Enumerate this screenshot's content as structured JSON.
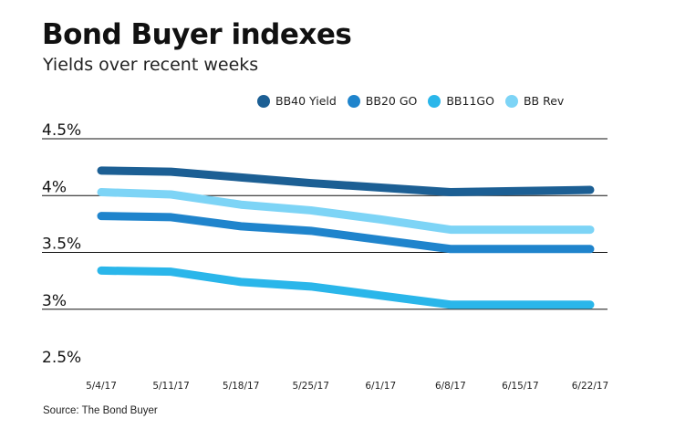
{
  "header": {
    "title": "Bond Buyer indexes",
    "subtitle": "Yields over recent weeks"
  },
  "footer": {
    "source": "Source: The Bond Buyer"
  },
  "chart_data": {
    "type": "line",
    "title": "Bond Buyer indexes",
    "subtitle": "Yields over recent weeks",
    "xlabel": "",
    "ylabel": "",
    "x": [
      "5/4/17",
      "5/11/17",
      "5/18/17",
      "5/25/17",
      "6/1/17",
      "6/8/17",
      "6/15/17",
      "6/22/17"
    ],
    "yticks": [
      "4.5%",
      "4%",
      "3.5%",
      "3%",
      "2.5%"
    ],
    "ytick_values": [
      4.5,
      4.0,
      3.5,
      3.0,
      2.5
    ],
    "ylim": [
      2.5,
      4.5
    ],
    "grid": true,
    "legend_position": "top",
    "series": [
      {
        "name": "BB40 Yield",
        "color": "#1c5f94",
        "values": [
          4.22,
          4.21,
          4.16,
          4.11,
          4.07,
          4.03,
          4.04,
          4.05
        ]
      },
      {
        "name": "BB20 GO",
        "color": "#1f84cc",
        "values": [
          3.82,
          3.81,
          3.73,
          3.69,
          3.61,
          3.53,
          3.53,
          3.53
        ]
      },
      {
        "name": "BB11GO",
        "color": "#2ab6ea",
        "values": [
          3.34,
          3.33,
          3.24,
          3.2,
          3.12,
          3.04,
          3.04,
          3.04
        ]
      },
      {
        "name": "BB Rev",
        "color": "#7dd4f6",
        "values": [
          4.03,
          4.01,
          3.92,
          3.87,
          3.79,
          3.7,
          3.7,
          3.7
        ]
      }
    ]
  }
}
